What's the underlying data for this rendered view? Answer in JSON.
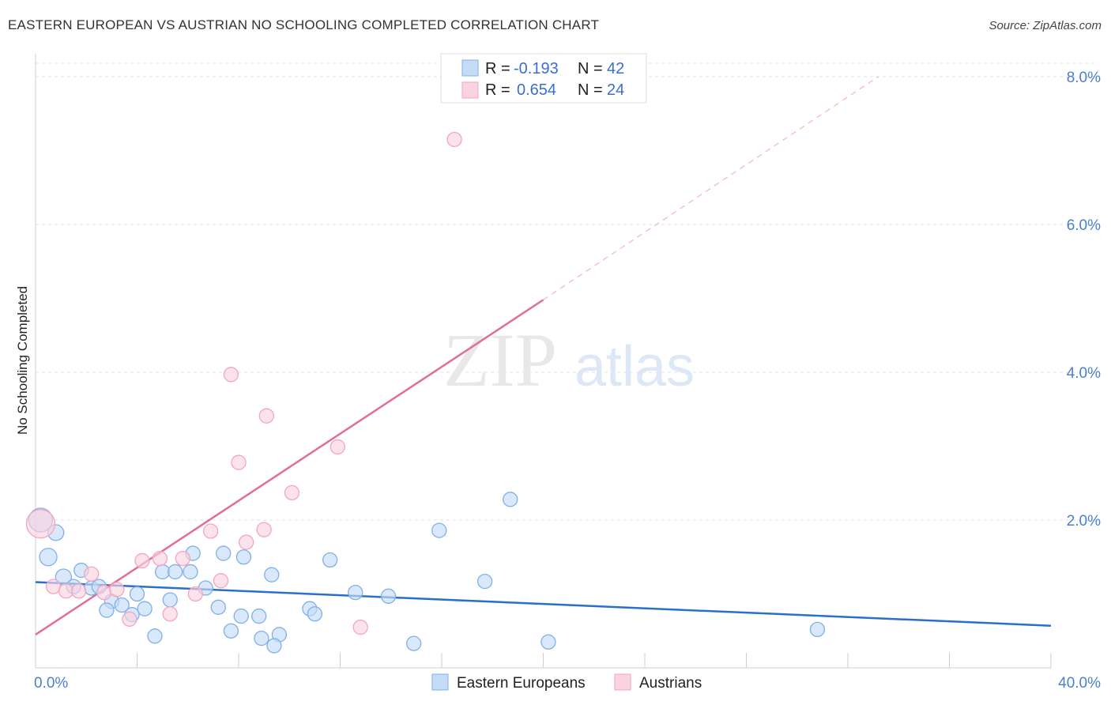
{
  "header": {
    "title": "EASTERN EUROPEAN VS AUSTRIAN NO SCHOOLING COMPLETED CORRELATION CHART",
    "source": "Source: ZipAtlas.com"
  },
  "watermark": {
    "zip": "ZIP",
    "atlas": "atlas"
  },
  "chart_data": {
    "type": "scatter",
    "title": "EASTERN EUROPEAN VS AUSTRIAN NO SCHOOLING COMPLETED CORRELATION CHART",
    "xlabel": "",
    "ylabel": "No Schooling Completed",
    "xlim": [
      0,
      40
    ],
    "ylim": [
      0,
      8.0
    ],
    "x_tick_labels": [
      "0.0%",
      "40.0%"
    ],
    "y_ticks": [
      2.0,
      4.0,
      6.0,
      8.0
    ],
    "y_tick_labels": [
      "2.0%",
      "4.0%",
      "6.0%",
      "8.0%"
    ],
    "grid": true,
    "legend": {
      "position": "top-center",
      "entries": [
        {
          "r_label": "R = ",
          "r_value": "-0.193",
          "n_label": "N = ",
          "n_value": "42"
        },
        {
          "r_label": "R = ",
          "r_value": "0.654",
          "n_label": "N = ",
          "n_value": "24"
        }
      ]
    },
    "series": [
      {
        "name": "Eastern Europeans",
        "color": "#7fb0e8",
        "fill": "#c5dcf7",
        "trend_color": "#2a6fcb",
        "trend": {
          "x0": 0,
          "y0": 1.16,
          "x1": 40,
          "y1": 0.57
        },
        "points": [
          [
            0.2,
            2.0,
            15
          ],
          [
            0.8,
            1.83,
            10
          ],
          [
            0.5,
            1.5,
            11
          ],
          [
            1.1,
            1.23,
            10
          ],
          [
            1.8,
            1.32,
            9
          ],
          [
            1.5,
            1.1,
            9
          ],
          [
            2.2,
            1.08,
            9
          ],
          [
            2.5,
            1.1,
            9
          ],
          [
            3.0,
            0.9,
            9
          ],
          [
            3.4,
            0.85,
            9
          ],
          [
            2.8,
            0.78,
            9
          ],
          [
            3.8,
            0.72,
            9
          ],
          [
            4.0,
            1.0,
            9
          ],
          [
            4.3,
            0.8,
            9
          ],
          [
            5.0,
            1.3,
            9
          ],
          [
            5.5,
            1.3,
            9
          ],
          [
            5.3,
            0.92,
            9
          ],
          [
            6.1,
            1.3,
            9
          ],
          [
            6.2,
            1.55,
            9
          ],
          [
            6.7,
            1.08,
            9
          ],
          [
            7.2,
            0.82,
            9
          ],
          [
            7.4,
            1.55,
            9
          ],
          [
            8.1,
            0.7,
            9
          ],
          [
            8.2,
            1.5,
            9
          ],
          [
            8.8,
            0.7,
            9
          ],
          [
            9.3,
            1.26,
            9
          ],
          [
            9.6,
            0.45,
            9
          ],
          [
            10.8,
            0.8,
            9
          ],
          [
            11.0,
            0.73,
            9
          ],
          [
            11.6,
            1.46,
            9
          ],
          [
            12.6,
            1.02,
            9
          ],
          [
            13.9,
            0.97,
            9
          ],
          [
            15.9,
            1.86,
            9
          ],
          [
            17.7,
            1.17,
            9
          ],
          [
            18.7,
            2.28,
            9
          ],
          [
            4.7,
            0.43,
            9
          ],
          [
            7.7,
            0.5,
            9
          ],
          [
            8.9,
            0.4,
            9
          ],
          [
            9.4,
            0.3,
            9
          ],
          [
            14.9,
            0.33,
            9
          ],
          [
            20.2,
            0.35,
            9
          ],
          [
            30.8,
            0.52,
            9
          ]
        ]
      },
      {
        "name": "Austrians",
        "color": "#f2a6bf",
        "fill": "#fbd3e0",
        "trend_color": "#e06e95",
        "trend": {
          "x0": 0,
          "y0": 0.45,
          "x1": 20,
          "y1": 4.98
        },
        "trend_ext": {
          "x0": 20,
          "y0": 4.98,
          "x1": 33.2,
          "y1": 8.0
        },
        "points": [
          [
            0.2,
            1.95,
            18
          ],
          [
            0.7,
            1.1,
            9
          ],
          [
            1.2,
            1.04,
            9
          ],
          [
            1.7,
            1.04,
            9
          ],
          [
            2.2,
            1.27,
            9
          ],
          [
            2.7,
            1.02,
            9
          ],
          [
            3.2,
            1.06,
            9
          ],
          [
            3.7,
            0.66,
            9
          ],
          [
            4.2,
            1.45,
            9
          ],
          [
            4.9,
            1.48,
            9
          ],
          [
            5.3,
            0.73,
            9
          ],
          [
            5.8,
            1.48,
            9
          ],
          [
            6.3,
            1.0,
            9
          ],
          [
            6.9,
            1.85,
            9
          ],
          [
            7.3,
            1.18,
            9
          ],
          [
            7.7,
            3.97,
            9
          ],
          [
            8.0,
            2.78,
            9
          ],
          [
            8.3,
            1.7,
            9
          ],
          [
            9.0,
            1.87,
            9
          ],
          [
            9.1,
            3.41,
            9
          ],
          [
            10.1,
            2.37,
            9
          ],
          [
            11.9,
            2.99,
            9
          ],
          [
            12.8,
            0.55,
            9
          ],
          [
            16.5,
            7.15,
            9
          ]
        ]
      }
    ]
  }
}
